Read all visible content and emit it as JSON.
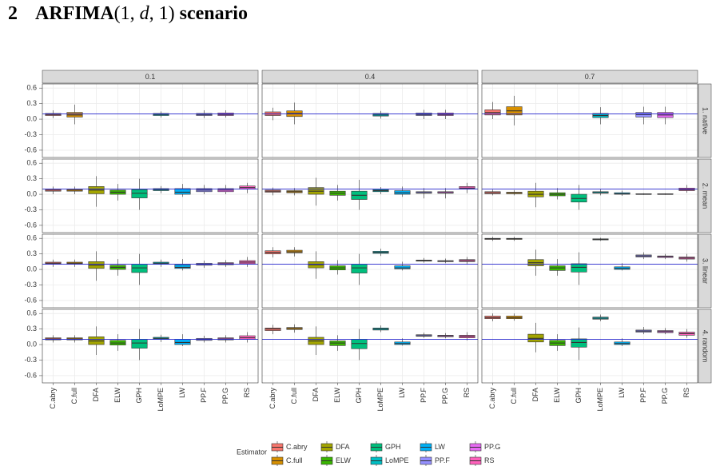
{
  "heading": {
    "number": "2",
    "title_parts": [
      "ARFIMA",
      "(1, ",
      "d",
      ", 1)",
      " scenario"
    ]
  },
  "chart_data": {
    "type": "boxplot",
    "columns": [
      "0.1",
      "0.4",
      "0.7"
    ],
    "rows": [
      "1. native",
      "2. mean",
      "3. linear",
      "4. random"
    ],
    "categories": [
      "C.abry",
      "C.full",
      "DFA",
      "ELW",
      "GPH",
      "LoMPE",
      "LW",
      "PP.F",
      "PP.G",
      "RS"
    ],
    "colors": [
      "#F8766D",
      "#D89000",
      "#A3A500",
      "#39B600",
      "#00BF7D",
      "#00BFC4",
      "#00B0F6",
      "#9590FF",
      "#E76BF3",
      "#FF62BC"
    ],
    "legend_title": "Estimator",
    "ylim": [
      -0.74,
      0.68
    ],
    "yticks": [
      0.6,
      0.3,
      {
        "value": 0,
        "label": "0.0"
      },
      -0.3,
      -0.6
    ],
    "reference_line": 0.1,
    "reference_color": "#2222cc",
    "grid": true,
    "boxes": [
      [
        [
          [
            0.02,
            0.07,
            0.09,
            0.11,
            0.17
          ],
          [
            -0.1,
            0.04,
            0.08,
            0.13,
            0.28
          ],
          null,
          null,
          null,
          [
            0.03,
            0.07,
            0.09,
            0.11,
            0.15
          ],
          null,
          [
            0.02,
            0.07,
            0.09,
            0.11,
            0.17
          ],
          [
            0.03,
            0.07,
            0.09,
            0.12,
            0.17
          ],
          null
        ],
        [
          [
            -0.02,
            0.07,
            0.1,
            0.14,
            0.22
          ],
          [
            -0.1,
            0.05,
            0.11,
            0.16,
            0.32
          ],
          null,
          null,
          null,
          [
            0.01,
            0.06,
            0.08,
            0.11,
            0.16
          ],
          null,
          [
            0.0,
            0.07,
            0.09,
            0.12,
            0.18
          ],
          [
            0.0,
            0.07,
            0.09,
            0.12,
            0.18
          ],
          null
        ],
        [
          [
            0.0,
            0.08,
            0.13,
            0.18,
            0.33
          ],
          [
            -0.12,
            0.08,
            0.16,
            0.24,
            0.45
          ],
          null,
          null,
          null,
          [
            -0.1,
            0.03,
            0.07,
            0.11,
            0.23
          ],
          null,
          [
            -0.1,
            0.04,
            0.09,
            0.13,
            0.24
          ],
          [
            -0.1,
            0.03,
            0.08,
            0.13,
            0.24
          ],
          null
        ]
      ],
      [
        [
          [
            0.0,
            0.06,
            0.08,
            0.1,
            0.15
          ],
          [
            0.0,
            0.06,
            0.08,
            0.1,
            0.15
          ],
          [
            -0.24,
            0.01,
            0.08,
            0.15,
            0.35
          ],
          [
            -0.12,
            0.0,
            0.04,
            0.08,
            0.2
          ],
          [
            -0.3,
            -0.07,
            0.02,
            0.09,
            0.3
          ],
          [
            0.02,
            0.07,
            0.09,
            0.11,
            0.16
          ],
          [
            -0.05,
            0.0,
            0.04,
            0.11,
            0.2
          ],
          [
            0.0,
            0.05,
            0.08,
            0.11,
            0.18
          ],
          [
            0.0,
            0.05,
            0.08,
            0.11,
            0.18
          ],
          [
            0.02,
            0.1,
            0.13,
            0.16,
            0.22
          ]
        ],
        [
          [
            -0.02,
            0.04,
            0.06,
            0.08,
            0.13
          ],
          [
            -0.02,
            0.03,
            0.05,
            0.07,
            0.12
          ],
          [
            -0.22,
            0.0,
            0.06,
            0.13,
            0.32
          ],
          [
            -0.12,
            -0.02,
            0.02,
            0.06,
            0.18
          ],
          [
            -0.3,
            -0.1,
            -0.02,
            0.06,
            0.28
          ],
          [
            0.0,
            0.05,
            0.07,
            0.09,
            0.14
          ],
          [
            -0.05,
            0.0,
            0.03,
            0.07,
            0.15
          ],
          [
            -0.08,
            0.02,
            0.03,
            0.05,
            0.12
          ],
          [
            -0.08,
            0.02,
            0.03,
            0.05,
            0.12
          ],
          [
            0.02,
            0.1,
            0.12,
            0.15,
            0.22
          ]
        ],
        [
          [
            -0.02,
            0.01,
            0.03,
            0.05,
            0.09
          ],
          [
            -0.02,
            0.01,
            0.03,
            0.04,
            0.08
          ],
          [
            -0.25,
            -0.05,
            0.0,
            0.06,
            0.22
          ],
          [
            -0.1,
            -0.03,
            0.0,
            0.03,
            0.12
          ],
          [
            -0.3,
            -0.15,
            -0.08,
            0.0,
            0.18
          ],
          [
            -0.02,
            0.02,
            0.03,
            0.05,
            0.1
          ],
          [
            -0.03,
            0.0,
            0.01,
            0.03,
            0.07
          ],
          [
            -0.01,
            0.0,
            0.0,
            0.01,
            0.02
          ],
          [
            -0.01,
            0.0,
            0.0,
            0.01,
            0.02
          ],
          [
            0.03,
            0.07,
            0.09,
            0.12,
            0.18
          ]
        ]
      ],
      [
        [
          [
            0.05,
            0.1,
            0.12,
            0.14,
            0.19
          ],
          [
            0.05,
            0.1,
            0.12,
            0.14,
            0.19
          ],
          [
            -0.22,
            0.02,
            0.08,
            0.15,
            0.35
          ],
          [
            -0.12,
            0.0,
            0.04,
            0.08,
            0.2
          ],
          [
            -0.3,
            -0.06,
            0.03,
            0.1,
            0.3
          ],
          [
            0.05,
            0.1,
            0.12,
            0.14,
            0.19
          ],
          [
            -0.02,
            0.02,
            0.04,
            0.09,
            0.2
          ],
          [
            0.03,
            0.08,
            0.1,
            0.12,
            0.17
          ],
          [
            0.05,
            0.09,
            0.11,
            0.13,
            0.18
          ],
          [
            0.05,
            0.11,
            0.14,
            0.17,
            0.24
          ]
        ],
        [
          [
            0.23,
            0.3,
            0.33,
            0.36,
            0.43
          ],
          [
            0.25,
            0.32,
            0.34,
            0.37,
            0.43
          ],
          [
            -0.18,
            0.03,
            0.09,
            0.15,
            0.35
          ],
          [
            -0.1,
            -0.01,
            0.03,
            0.07,
            0.18
          ],
          [
            -0.3,
            -0.07,
            0.03,
            0.1,
            0.3
          ],
          [
            0.26,
            0.31,
            0.33,
            0.35,
            0.4
          ],
          [
            -0.02,
            0.01,
            0.03,
            0.07,
            0.15
          ],
          [
            0.13,
            0.16,
            0.17,
            0.18,
            0.22
          ],
          [
            0.12,
            0.15,
            0.16,
            0.17,
            0.21
          ],
          [
            0.1,
            0.15,
            0.17,
            0.19,
            0.24
          ]
        ],
        [
          [
            0.55,
            0.58,
            0.59,
            0.6,
            0.63
          ],
          [
            0.55,
            0.58,
            0.59,
            0.6,
            0.63
          ],
          [
            -0.12,
            0.07,
            0.13,
            0.19,
            0.38
          ],
          [
            -0.12,
            -0.02,
            0.03,
            0.07,
            0.2
          ],
          [
            -0.3,
            -0.05,
            0.04,
            0.11,
            0.33
          ],
          [
            0.55,
            0.57,
            0.58,
            0.59,
            0.61
          ],
          [
            -0.02,
            0.0,
            0.02,
            0.05,
            0.12
          ],
          [
            0.2,
            0.24,
            0.26,
            0.28,
            0.33
          ],
          [
            0.2,
            0.23,
            0.25,
            0.26,
            0.3
          ],
          [
            0.15,
            0.2,
            0.22,
            0.24,
            0.3
          ]
        ]
      ],
      [
        [
          [
            0.04,
            0.09,
            0.11,
            0.13,
            0.18
          ],
          [
            0.04,
            0.09,
            0.11,
            0.13,
            0.18
          ],
          [
            -0.2,
            0.0,
            0.07,
            0.15,
            0.35
          ],
          [
            -0.12,
            -0.01,
            0.03,
            0.08,
            0.2
          ],
          [
            -0.3,
            -0.07,
            0.03,
            0.1,
            0.3
          ],
          [
            0.05,
            0.1,
            0.12,
            0.14,
            0.19
          ],
          [
            -0.03,
            0.0,
            0.04,
            0.1,
            0.2
          ],
          [
            0.04,
            0.08,
            0.1,
            0.12,
            0.17
          ],
          [
            0.04,
            0.09,
            0.11,
            0.13,
            0.18
          ],
          [
            0.04,
            0.1,
            0.13,
            0.17,
            0.24
          ]
        ],
        [
          [
            0.2,
            0.27,
            0.3,
            0.32,
            0.38
          ],
          [
            0.23,
            0.29,
            0.31,
            0.33,
            0.39
          ],
          [
            -0.2,
            0.0,
            0.07,
            0.14,
            0.35
          ],
          [
            -0.12,
            -0.02,
            0.03,
            0.07,
            0.18
          ],
          [
            -0.3,
            -0.08,
            0.02,
            0.1,
            0.3
          ],
          [
            0.24,
            0.28,
            0.3,
            0.32,
            0.37
          ],
          [
            -0.02,
            0.0,
            0.02,
            0.05,
            0.12
          ],
          [
            0.13,
            0.16,
            0.17,
            0.19,
            0.23
          ],
          [
            0.12,
            0.15,
            0.17,
            0.18,
            0.22
          ],
          [
            0.08,
            0.13,
            0.16,
            0.18,
            0.24
          ]
        ],
        [
          [
            0.45,
            0.5,
            0.52,
            0.55,
            0.6
          ],
          [
            0.46,
            0.5,
            0.52,
            0.55,
            0.6
          ],
          [
            -0.15,
            0.05,
            0.12,
            0.2,
            0.42
          ],
          [
            -0.12,
            -0.02,
            0.03,
            0.08,
            0.2
          ],
          [
            -0.3,
            -0.05,
            0.04,
            0.11,
            0.33
          ],
          [
            0.45,
            0.49,
            0.51,
            0.53,
            0.58
          ],
          [
            -0.03,
            0.0,
            0.02,
            0.05,
            0.12
          ],
          [
            0.2,
            0.24,
            0.26,
            0.28,
            0.34
          ],
          [
            0.2,
            0.23,
            0.25,
            0.27,
            0.32
          ],
          [
            0.13,
            0.18,
            0.21,
            0.24,
            0.3
          ]
        ]
      ]
    ]
  }
}
